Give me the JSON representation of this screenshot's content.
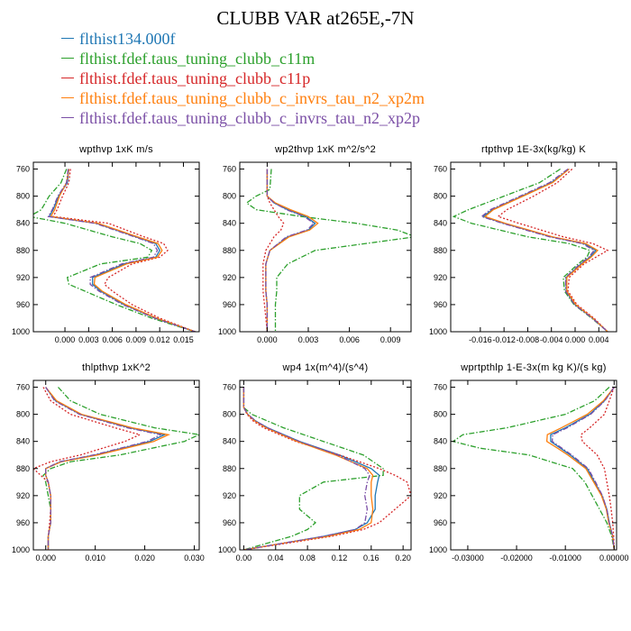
{
  "title": "CLUBB VAR at265E,-7N",
  "colors": {
    "blue": "#1f77b4",
    "green": "#2ca02c",
    "red": "#d62728",
    "orange": "#ff7f0e",
    "purple": "#7b4fa6"
  },
  "legend": [
    {
      "label": "flthist134.000f",
      "color": "#1f77b4",
      "dash": "solid"
    },
    {
      "label": "flthist.fdef.taus_tuning_clubb_c11m",
      "color": "#2ca02c",
      "dash": "dashdot"
    },
    {
      "label": "flthist.fdef.taus_tuning_clubb_c11p",
      "color": "#d62728",
      "dash": "dotted"
    },
    {
      "label": "flthist.fdef.taus_tuning_clubb_c_invrs_tau_n2_xp2m",
      "color": "#ff7f0e",
      "dash": "solid"
    },
    {
      "label": "flthist.fdef.taus_tuning_clubb_c_invrs_tau_n2_xp2p",
      "color": "#7b4fa6",
      "dash": "dashdot"
    }
  ],
  "chart_data": [
    {
      "type": "line",
      "title": "wpthvp  1xK m/s",
      "ylim": [
        1000,
        750
      ],
      "yticks": [
        760,
        800,
        840,
        880,
        920,
        960,
        1000
      ],
      "xlim": [
        -0.004,
        0.017
      ],
      "xticks": [
        0.0,
        0.003,
        0.006,
        0.009,
        0.012,
        0.015
      ],
      "xticklabels": [
        "0.000",
        "0.003",
        "0.006",
        "0.009",
        "0.012",
        "0.015"
      ],
      "y": [
        760,
        780,
        800,
        820,
        830,
        840,
        860,
        870,
        880,
        890,
        900,
        920,
        930,
        940,
        960,
        980,
        1000
      ],
      "series": [
        {
          "name": "flthist134.000f",
          "values": [
            0.0005,
            0.0003,
            -0.0008,
            -0.0015,
            -0.002,
            0.004,
            0.009,
            0.0115,
            0.012,
            0.0115,
            0.0075,
            0.0035,
            0.0035,
            0.0045,
            0.0075,
            0.0115,
            0.0165
          ]
        },
        {
          "name": "flthist.fdef.taus_tuning_clubb_c11m",
          "values": [
            0.0002,
            -0.0005,
            -0.002,
            -0.003,
            -0.0045,
            0.0,
            0.006,
            0.0095,
            0.011,
            0.0105,
            0.0045,
            0.0003,
            0.0005,
            0.0025,
            0.0065,
            0.011,
            0.0165
          ]
        },
        {
          "name": "flthist.fdef.taus_tuning_clubb_c11p",
          "values": [
            0.0007,
            0.0005,
            -0.0003,
            -0.001,
            -0.0015,
            0.0055,
            0.01,
            0.0125,
            0.013,
            0.012,
            0.0085,
            0.0055,
            0.005,
            0.006,
            0.0085,
            0.012,
            0.0165
          ]
        },
        {
          "name": "flthist.fdef.taus_tuning_clubb_c_invrs_tau_n2_xp2m",
          "values": [
            0.0005,
            0.0002,
            -0.0007,
            -0.0013,
            -0.0018,
            0.0042,
            0.0092,
            0.0118,
            0.0123,
            0.0117,
            0.0078,
            0.0038,
            0.0037,
            0.0047,
            0.0077,
            0.0116,
            0.0165
          ]
        },
        {
          "name": "flthist.fdef.taus_tuning_clubb_c_invrs_tau_n2_xp2p",
          "values": [
            0.0004,
            0.0002,
            -0.0009,
            -0.0016,
            -0.0021,
            0.0038,
            0.0088,
            0.0112,
            0.0117,
            0.0112,
            0.0072,
            0.0032,
            0.0032,
            0.0043,
            0.0073,
            0.0114,
            0.0165
          ]
        }
      ]
    },
    {
      "type": "line",
      "title": "wp2thvp  1xK m^2/s^2",
      "ylim": [
        1000,
        750
      ],
      "yticks": [
        760,
        800,
        840,
        880,
        920,
        960,
        1000
      ],
      "xlim": [
        -0.002,
        0.0105
      ],
      "xticks": [
        0.0,
        0.003,
        0.006,
        0.009
      ],
      "xticklabels": [
        "0.000",
        "0.003",
        "0.006",
        "0.009"
      ],
      "y": [
        760,
        790,
        800,
        810,
        820,
        830,
        840,
        850,
        860,
        880,
        900,
        920,
        940,
        960,
        980,
        1000
      ],
      "series": [
        {
          "name": "flthist134.000f",
          "values": [
            0.0,
            0.0,
            0.0,
            0.0005,
            0.0015,
            0.0028,
            0.0035,
            0.003,
            0.0015,
            0.0002,
            -0.0001,
            -0.0001,
            -0.0001,
            0.0,
            0.0,
            0.0
          ]
        },
        {
          "name": "flthist.fdef.taus_tuning_clubb_c11m",
          "values": [
            0.0003,
            0.0002,
            -0.0008,
            -0.0015,
            -0.0008,
            0.0025,
            0.0065,
            0.0095,
            0.0108,
            0.0035,
            0.0015,
            0.0007,
            0.0007,
            0.0006,
            0.0006,
            0.0006
          ]
        },
        {
          "name": "flthist.fdef.taus_tuning_clubb_c11p",
          "values": [
            0.0,
            0.0,
            0.0,
            0.0002,
            0.0005,
            0.0008,
            0.0012,
            0.001,
            0.0005,
            -0.0001,
            -0.0003,
            -0.0003,
            -0.0003,
            -0.0002,
            -0.0001,
            0.0
          ]
        },
        {
          "name": "flthist.fdef.taus_tuning_clubb_c_invrs_tau_n2_xp2m",
          "values": [
            0.0,
            0.0,
            0.0,
            0.0006,
            0.0017,
            0.003,
            0.0037,
            0.0031,
            0.0016,
            0.0002,
            -0.0001,
            -0.0001,
            -0.0001,
            0.0,
            0.0,
            0.0
          ]
        },
        {
          "name": "flthist.fdef.taus_tuning_clubb_c_invrs_tau_n2_xp2p",
          "values": [
            0.0,
            0.0,
            0.0,
            0.0005,
            0.0014,
            0.0027,
            0.0034,
            0.0029,
            0.0014,
            0.0002,
            -0.0001,
            -0.0001,
            -0.0001,
            0.0,
            0.0,
            0.0
          ]
        }
      ]
    },
    {
      "type": "line",
      "title": "rtpthvp  1E-3x(kg/kg) K",
      "ylim": [
        1000,
        750
      ],
      "yticks": [
        760,
        800,
        840,
        880,
        920,
        960,
        1000
      ],
      "xlim": [
        -0.021,
        0.007
      ],
      "xticks": [
        -0.016,
        -0.012,
        -0.008,
        -0.004,
        0.0,
        0.004
      ],
      "xticklabels": [
        "-0.016",
        "-0.012",
        "-0.008",
        "-0.004",
        "0.000",
        "0.004"
      ],
      "y": [
        760,
        780,
        800,
        820,
        830,
        840,
        860,
        870,
        880,
        890,
        900,
        920,
        940,
        960,
        980,
        1000
      ],
      "series": [
        {
          "name": "flthist134.000f",
          "values": [
            -0.001,
            -0.004,
            -0.009,
            -0.014,
            -0.0155,
            -0.012,
            -0.004,
            0.0015,
            0.0035,
            0.0025,
            0.001,
            -0.0015,
            -0.0015,
            0.0,
            0.003,
            0.0055
          ]
        },
        {
          "name": "flthist.fdef.taus_tuning_clubb_c11m",
          "values": [
            -0.0025,
            -0.006,
            -0.012,
            -0.018,
            -0.0205,
            -0.0175,
            -0.008,
            -0.001,
            0.0025,
            0.002,
            0.0005,
            -0.002,
            -0.0018,
            -0.0002,
            0.0028,
            0.0055
          ]
        },
        {
          "name": "flthist.fdef.taus_tuning_clubb_c11p",
          "values": [
            -0.0005,
            -0.003,
            -0.007,
            -0.0115,
            -0.013,
            -0.0095,
            -0.002,
            0.003,
            0.0055,
            0.0035,
            0.0015,
            -0.001,
            -0.0012,
            0.0003,
            0.0032,
            0.0055
          ]
        },
        {
          "name": "flthist.fdef.taus_tuning_clubb_c_invrs_tau_n2_xp2m",
          "values": [
            -0.001,
            -0.0038,
            -0.0088,
            -0.0138,
            -0.0152,
            -0.0118,
            -0.0038,
            0.0018,
            0.0038,
            0.0027,
            0.0012,
            -0.0014,
            -0.0014,
            0.0001,
            0.003,
            0.0055
          ]
        },
        {
          "name": "flthist.fdef.taus_tuning_clubb_c_invrs_tau_n2_xp2p",
          "values": [
            -0.0012,
            -0.0043,
            -0.0093,
            -0.0143,
            -0.0158,
            -0.0123,
            -0.0043,
            0.0012,
            0.0032,
            0.0023,
            0.0008,
            -0.0016,
            -0.0016,
            -0.0001,
            0.0029,
            0.0055
          ]
        }
      ]
    },
    {
      "type": "line",
      "title": "thlpthvp  1xK^2",
      "ylim": [
        1000,
        750
      ],
      "yticks": [
        760,
        800,
        840,
        880,
        920,
        960,
        1000
      ],
      "xlim": [
        -0.0025,
        0.031
      ],
      "xticks": [
        0.0,
        0.01,
        0.02,
        0.03
      ],
      "xticklabels": [
        "0.000",
        "0.010",
        "0.020",
        "0.030"
      ],
      "y": [
        760,
        780,
        800,
        820,
        830,
        840,
        860,
        870,
        880,
        890,
        900,
        920,
        940,
        960,
        980,
        1000
      ],
      "series": [
        {
          "name": "flthist134.000f",
          "values": [
            0.0,
            0.002,
            0.007,
            0.017,
            0.024,
            0.021,
            0.01,
            0.003,
            0.0,
            0.0,
            0.0005,
            0.001,
            0.001,
            0.001,
            0.0005,
            0.0005
          ]
        },
        {
          "name": "flthist.fdef.taus_tuning_clubb_c11m",
          "values": [
            0.0025,
            0.005,
            0.011,
            0.022,
            0.031,
            0.028,
            0.015,
            0.005,
            0.001,
            -0.0005,
            0.0,
            0.0005,
            0.001,
            0.001,
            0.0005,
            0.0005
          ]
        },
        {
          "name": "flthist.fdef.taus_tuning_clubb_c11p",
          "values": [
            -0.0005,
            0.001,
            0.005,
            0.014,
            0.019,
            0.016,
            0.007,
            0.001,
            -0.0025,
            -0.001,
            0.0005,
            0.001,
            0.001,
            0.0008,
            0.0005,
            0.0005
          ]
        },
        {
          "name": "flthist.fdef.taus_tuning_clubb_c_invrs_tau_n2_xp2m",
          "values": [
            0.0,
            0.0022,
            0.0072,
            0.0175,
            0.0248,
            0.0218,
            0.0105,
            0.0032,
            0.0,
            0.0,
            0.0005,
            0.001,
            0.001,
            0.001,
            0.0005,
            0.0005
          ]
        },
        {
          "name": "flthist.fdef.taus_tuning_clubb_c_invrs_tau_n2_xp2p",
          "values": [
            0.0,
            0.0018,
            0.0068,
            0.0165,
            0.0232,
            0.0205,
            0.0097,
            0.0028,
            0.0,
            0.0,
            0.0005,
            0.001,
            0.001,
            0.001,
            0.0005,
            0.0005
          ]
        }
      ]
    },
    {
      "type": "line",
      "title": "wp4  1x(m^4)/(s^4)",
      "ylim": [
        1000,
        750
      ],
      "yticks": [
        760,
        800,
        840,
        880,
        920,
        960,
        1000
      ],
      "xlim": [
        -0.005,
        0.21
      ],
      "xticks": [
        0.0,
        0.04,
        0.08,
        0.12,
        0.16,
        0.2
      ],
      "xticklabels": [
        "0.00",
        "0.04",
        "0.08",
        "0.12",
        "0.16",
        "0.20"
      ],
      "y": [
        760,
        790,
        800,
        810,
        820,
        840,
        860,
        880,
        890,
        900,
        920,
        940,
        960,
        970,
        980,
        990,
        1000
      ],
      "series": [
        {
          "name": "flthist134.000f",
          "values": [
            0.0,
            0.0,
            0.005,
            0.015,
            0.03,
            0.07,
            0.12,
            0.16,
            0.17,
            0.168,
            0.165,
            0.165,
            0.155,
            0.14,
            0.1,
            0.05,
            0.0
          ]
        },
        {
          "name": "flthist.fdef.taus_tuning_clubb_c11m",
          "values": [
            0.0,
            0.0,
            0.01,
            0.03,
            0.05,
            0.1,
            0.15,
            0.175,
            0.175,
            0.1,
            0.07,
            0.07,
            0.09,
            0.08,
            0.06,
            0.03,
            0.0
          ]
        },
        {
          "name": "flthist.fdef.taus_tuning_clubb_c11p",
          "values": [
            0.0,
            0.0,
            0.004,
            0.012,
            0.025,
            0.065,
            0.12,
            0.17,
            0.19,
            0.205,
            0.21,
            0.19,
            0.17,
            0.15,
            0.11,
            0.055,
            0.0
          ]
        },
        {
          "name": "flthist.fdef.taus_tuning_clubb_c_invrs_tau_n2_xp2m",
          "values": [
            0.0,
            0.0,
            0.005,
            0.014,
            0.028,
            0.067,
            0.115,
            0.155,
            0.162,
            0.16,
            0.16,
            0.162,
            0.16,
            0.145,
            0.105,
            0.05,
            0.0
          ]
        },
        {
          "name": "flthist.fdef.taus_tuning_clubb_c_invrs_tau_n2_xp2p",
          "values": [
            0.0,
            0.0,
            0.005,
            0.015,
            0.03,
            0.07,
            0.118,
            0.152,
            0.158,
            0.155,
            0.152,
            0.155,
            0.152,
            0.14,
            0.1,
            0.05,
            0.0
          ]
        }
      ]
    },
    {
      "type": "line",
      "title": "wprtpthlp  1-E-3x(m kg K)/(s kg)",
      "ylim": [
        1000,
        750
      ],
      "yticks": [
        760,
        800,
        840,
        880,
        920,
        960,
        1000
      ],
      "xlim": [
        -0.0335,
        0.0005
      ],
      "xticks": [
        -0.03,
        -0.02,
        -0.01,
        0.0
      ],
      "xticklabels": [
        "-0.03000",
        "-0.02000",
        "-0.01000",
        "0.00000"
      ],
      "y": [
        760,
        780,
        800,
        820,
        830,
        840,
        850,
        860,
        880,
        900,
        920,
        940,
        960,
        980,
        1000
      ],
      "series": [
        {
          "name": "flthist134.000f",
          "values": [
            0.0,
            -0.002,
            -0.005,
            -0.01,
            -0.013,
            -0.013,
            -0.011,
            -0.009,
            -0.0055,
            -0.004,
            -0.0025,
            -0.0015,
            -0.001,
            -0.0003,
            0.0
          ]
        },
        {
          "name": "flthist.fdef.taus_tuning_clubb_c11m",
          "values": [
            -0.001,
            -0.004,
            -0.01,
            -0.022,
            -0.031,
            -0.033,
            -0.0275,
            -0.0175,
            -0.0085,
            -0.006,
            -0.0045,
            -0.003,
            -0.0015,
            -0.0005,
            0.0
          ]
        },
        {
          "name": "flthist.fdef.taus_tuning_clubb_c11p",
          "values": [
            0.0,
            -0.001,
            -0.002,
            -0.005,
            -0.0068,
            -0.0065,
            -0.005,
            -0.0035,
            -0.002,
            -0.0015,
            -0.001,
            -0.0006,
            -0.0003,
            -0.0001,
            0.0
          ]
        },
        {
          "name": "flthist.fdef.taus_tuning_clubb_c_invrs_tau_n2_xp2m",
          "values": [
            0.0,
            -0.0022,
            -0.0055,
            -0.0108,
            -0.0137,
            -0.0138,
            -0.0116,
            -0.0095,
            -0.0058,
            -0.0042,
            -0.0026,
            -0.0016,
            -0.0011,
            -0.0003,
            0.0
          ]
        },
        {
          "name": "flthist.fdef.taus_tuning_clubb_c_invrs_tau_n2_xp2p",
          "values": [
            0.0,
            -0.0019,
            -0.0048,
            -0.0096,
            -0.0126,
            -0.0127,
            -0.0107,
            -0.0087,
            -0.0053,
            -0.0038,
            -0.0024,
            -0.0015,
            -0.001,
            -0.0003,
            0.0
          ]
        }
      ]
    }
  ]
}
